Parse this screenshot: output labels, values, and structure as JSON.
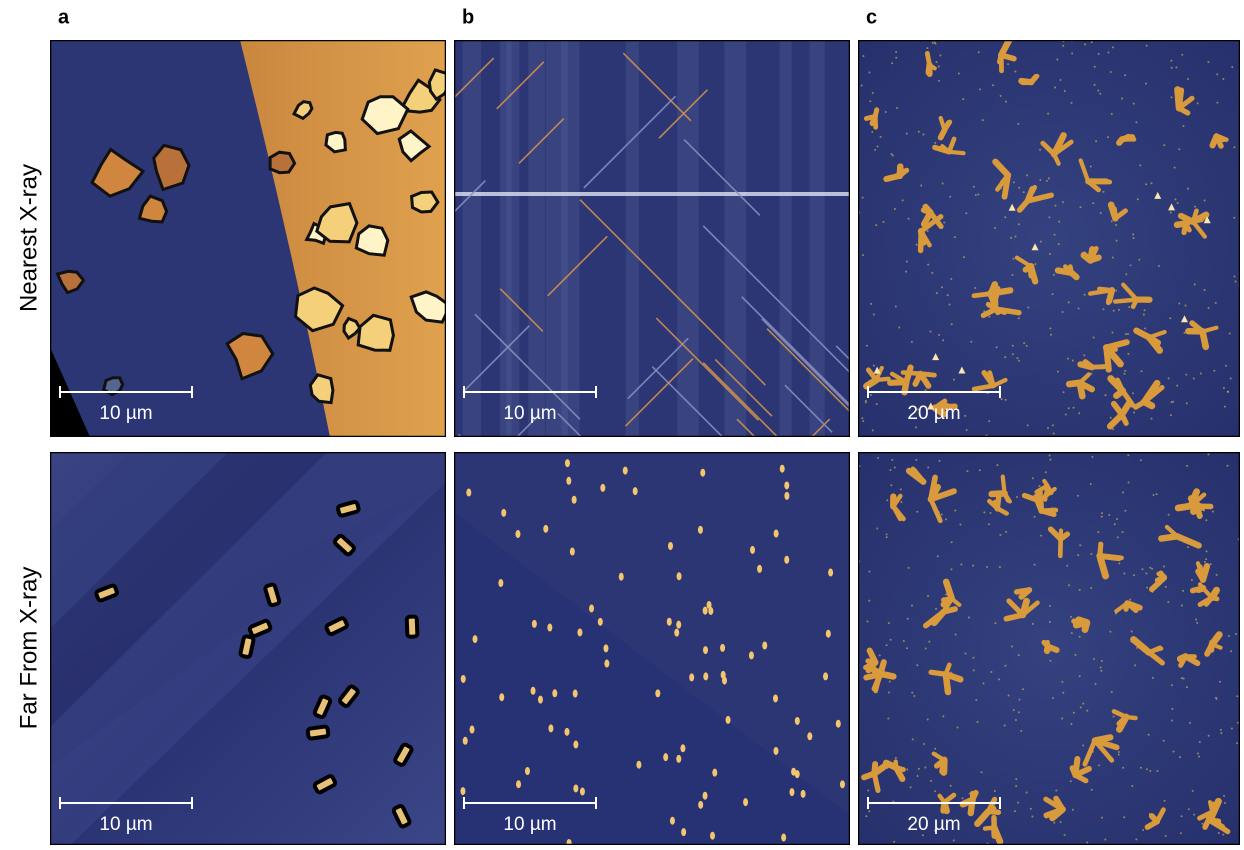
{
  "row_labels": [
    "Nearest X-ray",
    "Far From X-ray"
  ],
  "columns": [
    {
      "label": "a",
      "images": [
        {
          "scale_bar": "10 µm"
        },
        {
          "scale_bar": "10 µm"
        }
      ]
    },
    {
      "label": "b",
      "images": [
        {
          "scale_bar": "10 µm"
        },
        {
          "scale_bar": "10 µm"
        }
      ]
    },
    {
      "label": "c",
      "images": [
        {
          "scale_bar": "20 µm"
        },
        {
          "scale_bar": "20 µm"
        }
      ]
    }
  ]
}
